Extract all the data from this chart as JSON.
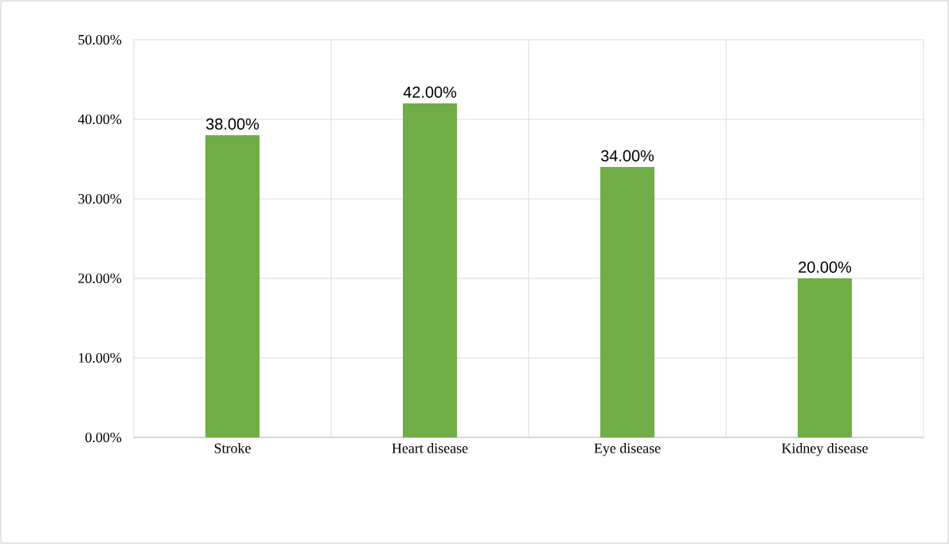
{
  "chart_data": {
    "type": "bar",
    "categories": [
      "Stroke",
      "Heart disease",
      "Eye disease",
      "Kidney disease"
    ],
    "values": [
      38,
      42,
      34,
      20
    ],
    "color": "#70ad47",
    "value_labels": [
      "38.00%",
      "42.00%",
      "34.00%",
      "20.00%"
    ],
    "ylim": [
      0,
      50
    ],
    "yticks": [
      {
        "value": 0,
        "label": "0.00%"
      },
      {
        "value": 10,
        "label": "10.00%"
      },
      {
        "value": 20,
        "label": "20.00%"
      },
      {
        "value": 30,
        "label": "30.00%"
      },
      {
        "value": 40,
        "label": "40.00%"
      },
      {
        "value": 50,
        "label": "50.00%"
      }
    ],
    "grid": true
  }
}
